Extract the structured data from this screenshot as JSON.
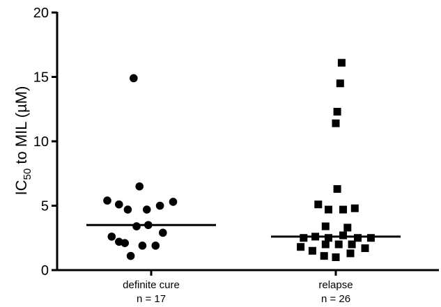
{
  "chart_data": {
    "type": "scatter",
    "ylabel": {
      "prefix": "IC",
      "subscript": "50",
      "suffix": " to MIL (µM)"
    },
    "ylim": [
      0,
      20
    ],
    "yticks": [
      "0",
      "5",
      "10",
      "15",
      "20"
    ],
    "grid": false,
    "groups": [
      {
        "label": "definite cure",
        "n_label": "n = 17",
        "marker": "circle",
        "median": 3.5,
        "points": [
          {
            "x": -0.12,
            "y": 14.9
          },
          {
            "x": -0.08,
            "y": 6.5
          },
          {
            "x": -0.3,
            "y": 5.4
          },
          {
            "x": -0.22,
            "y": 5.1
          },
          {
            "x": -0.16,
            "y": 4.7
          },
          {
            "x": -0.03,
            "y": 4.7
          },
          {
            "x": 0.06,
            "y": 5.0
          },
          {
            "x": 0.15,
            "y": 5.3
          },
          {
            "x": -0.1,
            "y": 3.4
          },
          {
            "x": -0.02,
            "y": 3.5
          },
          {
            "x": -0.27,
            "y": 2.6
          },
          {
            "x": -0.18,
            "y": 2.1
          },
          {
            "x": -0.06,
            "y": 1.9
          },
          {
            "x": 0.03,
            "y": 1.9
          },
          {
            "x": 0.08,
            "y": 2.9
          },
          {
            "x": -0.22,
            "y": 2.2
          },
          {
            "x": -0.14,
            "y": 1.1
          }
        ]
      },
      {
        "label": "relapse",
        "n_label": "n =  26",
        "marker": "square",
        "median": 2.6,
        "points": [
          {
            "x": 0.04,
            "y": 16.1
          },
          {
            "x": 0.03,
            "y": 14.5
          },
          {
            "x": 0.01,
            "y": 12.3
          },
          {
            "x": 0.0,
            "y": 11.4
          },
          {
            "x": 0.01,
            "y": 6.3
          },
          {
            "x": -0.12,
            "y": 5.1
          },
          {
            "x": -0.05,
            "y": 4.7
          },
          {
            "x": 0.05,
            "y": 4.7
          },
          {
            "x": 0.13,
            "y": 4.8
          },
          {
            "x": -0.07,
            "y": 3.4
          },
          {
            "x": 0.08,
            "y": 3.3
          },
          {
            "x": -0.22,
            "y": 2.5
          },
          {
            "x": -0.14,
            "y": 2.6
          },
          {
            "x": -0.05,
            "y": 2.5
          },
          {
            "x": 0.05,
            "y": 2.7
          },
          {
            "x": 0.15,
            "y": 2.5
          },
          {
            "x": 0.24,
            "y": 2.5
          },
          {
            "x": -0.24,
            "y": 1.8
          },
          {
            "x": -0.16,
            "y": 1.5
          },
          {
            "x": -0.07,
            "y": 2.0
          },
          {
            "x": 0.02,
            "y": 2.0
          },
          {
            "x": 0.11,
            "y": 2.0
          },
          {
            "x": 0.2,
            "y": 1.7
          },
          {
            "x": -0.08,
            "y": 1.1
          },
          {
            "x": 0.0,
            "y": 1.0
          },
          {
            "x": 0.1,
            "y": 1.3
          }
        ]
      }
    ]
  }
}
